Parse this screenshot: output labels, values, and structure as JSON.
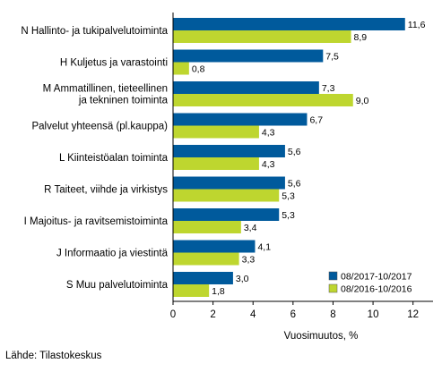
{
  "chart_data": {
    "type": "bar",
    "orientation": "horizontal",
    "categories": [
      [
        "N Hallinto- ja tukipalvelutoiminta"
      ],
      [
        "H Kuljetus ja varastointi"
      ],
      [
        "M Ammatillinen, tieteellinen",
        "ja tekninen toiminta"
      ],
      [
        "Palvelut yhteensä (pl.kauppa)"
      ],
      [
        "L Kiinteistöalan toiminta"
      ],
      [
        "R Taiteet, viihde ja virkistys"
      ],
      [
        "I Majoitus- ja ravitsemistoiminta"
      ],
      [
        "J Informaatio ja viestintä"
      ],
      [
        "S Muu palvelutoiminta"
      ]
    ],
    "series": [
      {
        "name": "08/2017-10/2017",
        "color": "#005a9c",
        "values": [
          11.6,
          7.5,
          7.3,
          6.7,
          5.6,
          5.6,
          5.3,
          4.1,
          3.0
        ],
        "labels": [
          "11,6",
          "7,5",
          "7,3",
          "6,7",
          "5,6",
          "5,6",
          "5,3",
          "4,1",
          "3,0"
        ]
      },
      {
        "name": "08/2016-10/2016",
        "color": "#bed62f",
        "values": [
          8.9,
          0.8,
          9.0,
          4.3,
          4.3,
          5.3,
          3.4,
          3.3,
          1.8
        ],
        "labels": [
          "8,9",
          "0,8",
          "9,0",
          "4,3",
          "4,3",
          "5,3",
          "3,4",
          "3,3",
          "1,8"
        ]
      }
    ],
    "xlim": [
      0,
      13
    ],
    "xticks": [
      0,
      2,
      4,
      6,
      8,
      10,
      12
    ],
    "xlabel": "Vuosimuutos, %",
    "legend_position": "bottom-right",
    "grid": false
  },
  "source": "Lähde: Tilastokeskus"
}
